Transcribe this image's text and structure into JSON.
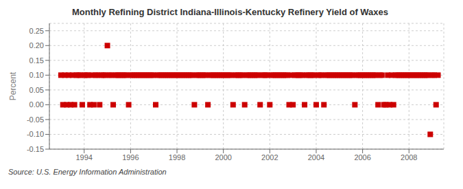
{
  "chart_data": {
    "type": "scatter",
    "title": "Monthly Refining District Indiana-Illinois-Kentucky Refinery Yield of Waxes",
    "y_label": "Percent",
    "source": "Source: U.S. Energy Information Administration",
    "color": "#cc0000",
    "marker": "square",
    "grid": true,
    "xlim": [
      1992.5,
      2009.5
    ],
    "ylim": [
      -0.15,
      0.275
    ],
    "xticks": [
      1994,
      1996,
      1998,
      2000,
      2002,
      2004,
      2006,
      2008
    ],
    "yticks": [
      -0.15,
      {
        "value": -0.1,
        "label": "-0.10"
      },
      -0.05,
      {
        "value": 0,
        "label": "0.00"
      },
      0.05,
      {
        "value": 0.1,
        "label": "0.10"
      },
      0.15,
      {
        "value": 0.2,
        "label": "0.20"
      },
      0.25
    ],
    "x": [
      1993.0,
      1993.083,
      1993.167,
      1993.25,
      1993.333,
      1993.417,
      1993.5,
      1993.583,
      1993.667,
      1993.75,
      1993.833,
      1993.917,
      1994.0,
      1994.083,
      1994.167,
      1994.25,
      1994.333,
      1994.417,
      1994.5,
      1994.583,
      1994.667,
      1994.75,
      1994.833,
      1994.917,
      1995.0,
      1995.083,
      1995.167,
      1995.25,
      1995.333,
      1995.417,
      1995.5,
      1995.583,
      1995.667,
      1995.75,
      1995.833,
      1995.917,
      1996.0,
      1996.083,
      1996.167,
      1996.25,
      1996.333,
      1996.417,
      1996.5,
      1996.583,
      1996.667,
      1996.75,
      1996.833,
      1996.917,
      1997.0,
      1997.083,
      1997.167,
      1997.25,
      1997.333,
      1997.417,
      1997.5,
      1997.583,
      1997.667,
      1997.75,
      1997.833,
      1997.917,
      1998.0,
      1998.083,
      1998.167,
      1998.25,
      1998.333,
      1998.417,
      1998.5,
      1998.583,
      1998.667,
      1998.75,
      1998.833,
      1998.917,
      1999.0,
      1999.083,
      1999.167,
      1999.25,
      1999.333,
      1999.417,
      1999.5,
      1999.583,
      1999.667,
      1999.75,
      1999.833,
      1999.917,
      2000.0,
      2000.083,
      2000.167,
      2000.25,
      2000.333,
      2000.417,
      2000.5,
      2000.583,
      2000.667,
      2000.75,
      2000.833,
      2000.917,
      2001.0,
      2001.083,
      2001.167,
      2001.25,
      2001.333,
      2001.417,
      2001.5,
      2001.583,
      2001.667,
      2001.75,
      2001.833,
      2001.917,
      2002.0,
      2002.083,
      2002.167,
      2002.25,
      2002.333,
      2002.417,
      2002.5,
      2002.583,
      2002.667,
      2002.75,
      2002.833,
      2002.917,
      2003.0,
      2003.083,
      2003.167,
      2003.25,
      2003.333,
      2003.417,
      2003.5,
      2003.583,
      2003.667,
      2003.75,
      2003.833,
      2003.917,
      2004.0,
      2004.083,
      2004.167,
      2004.25,
      2004.333,
      2004.417,
      2004.5,
      2004.583,
      2004.667,
      2004.75,
      2004.833,
      2004.917,
      2005.0,
      2005.083,
      2005.167,
      2005.25,
      2005.333,
      2005.417,
      2005.5,
      2005.583,
      2005.667,
      2005.75,
      2005.833,
      2005.917,
      2006.0,
      2006.083,
      2006.167,
      2006.25,
      2006.333,
      2006.417,
      2006.5,
      2006.583,
      2006.667,
      2006.75,
      2006.833,
      2006.917,
      2007.0,
      2007.083,
      2007.167,
      2007.25,
      2007.333,
      2007.417,
      2007.5,
      2007.583,
      2007.667,
      2007.75,
      2007.833,
      2007.917,
      2008.0,
      2008.083,
      2008.167,
      2008.25,
      2008.333,
      2008.417,
      2008.5,
      2008.583,
      2008.667,
      2008.75,
      2008.833,
      2008.917,
      2009.0,
      2009.083,
      2009.167,
      2009.25
    ],
    "values": [
      0.1,
      0.0,
      0.1,
      0.0,
      0.1,
      0.0,
      0.1,
      0.0,
      0.1,
      0.1,
      0.1,
      0.0,
      0.1,
      0.1,
      0.1,
      0.0,
      0.1,
      0.0,
      0.1,
      0.1,
      0.0,
      0.1,
      0.1,
      0.1,
      0.2,
      0.1,
      0.1,
      0.0,
      0.1,
      0.1,
      0.1,
      0.1,
      0.1,
      0.1,
      0.1,
      0.0,
      0.1,
      0.1,
      0.1,
      0.1,
      0.1,
      0.1,
      0.1,
      0.1,
      0.1,
      0.1,
      0.1,
      0.1,
      0.1,
      0.0,
      0.1,
      0.1,
      0.1,
      0.1,
      0.1,
      0.1,
      0.1,
      0.1,
      0.1,
      0.1,
      0.1,
      0.1,
      0.1,
      0.1,
      0.1,
      0.1,
      0.1,
      0.1,
      0.1,
      0.0,
      0.1,
      0.1,
      0.1,
      0.1,
      0.1,
      0.1,
      0.0,
      0.1,
      0.1,
      0.1,
      0.1,
      0.1,
      0.1,
      0.1,
      0.1,
      0.1,
      0.1,
      0.1,
      0.1,
      0.0,
      0.1,
      0.1,
      0.1,
      0.1,
      0.1,
      0.0,
      0.1,
      0.1,
      0.1,
      0.1,
      0.1,
      0.1,
      0.1,
      0.0,
      0.1,
      0.1,
      0.1,
      0.1,
      0.0,
      0.1,
      0.1,
      0.1,
      0.1,
      0.1,
      0.1,
      0.1,
      0.1,
      0.1,
      0.0,
      0.1,
      0.0,
      0.1,
      0.1,
      0.1,
      0.1,
      0.1,
      0.0,
      0.1,
      0.1,
      0.1,
      0.1,
      0.1,
      0.0,
      0.1,
      0.1,
      0.1,
      0.0,
      0.1,
      0.1,
      0.1,
      0.1,
      0.1,
      0.1,
      0.1,
      0.1,
      0.1,
      0.1,
      0.1,
      0.1,
      0.1,
      0.1,
      0.1,
      0.0,
      0.1,
      0.1,
      0.1,
      0.1,
      0.1,
      0.1,
      0.1,
      0.1,
      0.1,
      0.1,
      0.1,
      0.0,
      0.1,
      0.1,
      0.0,
      0.0,
      0.1,
      0.0,
      0.1,
      0.0,
      0.1,
      0.1,
      0.1,
      0.1,
      0.1,
      0.1,
      0.1,
      0.1,
      0.1,
      0.1,
      0.1,
      0.1,
      0.1,
      0.1,
      0.1,
      0.1,
      0.1,
      0.1,
      -0.1,
      0.1,
      0.1,
      0.0,
      0.1
    ]
  }
}
